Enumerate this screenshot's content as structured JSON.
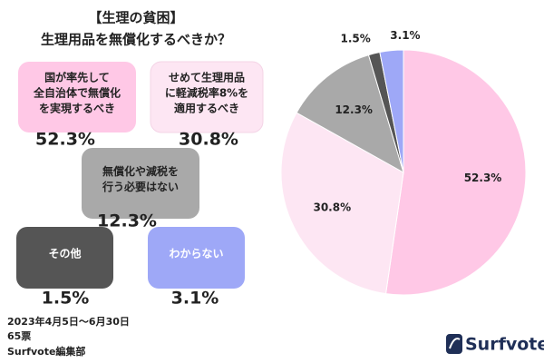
{
  "chart_data": {
    "type": "pie",
    "title_lines": [
      "【生理の貧困】",
      "生理用品を無償化するべきか？"
    ],
    "categories": [
      [
        "国が率先して",
        "全自治体で無償化",
        "を実現するべき"
      ],
      [
        "せめて生理用品",
        "に軽減税率8%を",
        "適用するべき"
      ],
      [
        "無償化や減税を",
        "行う必要はない"
      ],
      [
        "その他"
      ],
      [
        "わからない"
      ]
    ],
    "values": [
      52.3,
      30.8,
      12.3,
      1.5,
      3.1
    ],
    "value_labels": [
      "52.3%",
      "30.8%",
      "12.3%",
      "1.5%",
      "3.1%"
    ],
    "colors": [
      "#ffc8e6",
      "#fde6f3",
      "#a9a9a9",
      "#555555",
      "#9ea8f7"
    ],
    "footer": [
      "2023年4月5日～6月30日",
      "65票",
      "Surfvote編集部"
    ],
    "logo": "Surfvote"
  }
}
